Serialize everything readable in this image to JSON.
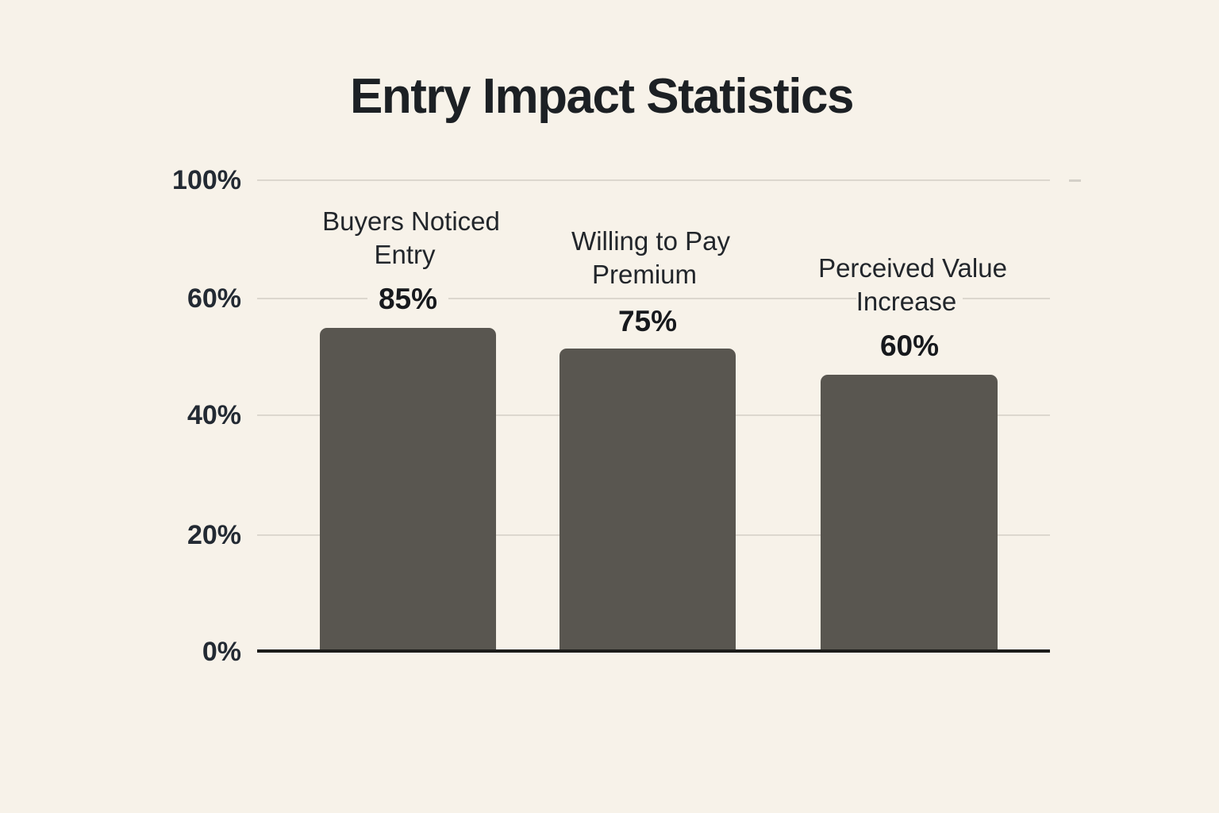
{
  "chart_data": {
    "type": "bar",
    "title": "Entry Impact Statistics",
    "categories": [
      "Buyers Noticed Entry",
      "Willing to Pay Premium",
      "Perceived Value Increase"
    ],
    "values": [
      85,
      75,
      60
    ],
    "value_labels": [
      "85%",
      "75%",
      "60%"
    ],
    "y_ticks": [
      "100%",
      "60%",
      "40%",
      "20%",
      "0%"
    ],
    "ylim": [
      0,
      100
    ],
    "grid": true,
    "legend_position": "none",
    "xlabel": "",
    "ylabel": "",
    "colors": {
      "background": "#f7f2e9",
      "bar": "#595650",
      "gridline": "#dcd7ce",
      "axis": "#1c1c1a",
      "title_text": "#1c2024",
      "label_text": "#22262b"
    }
  }
}
